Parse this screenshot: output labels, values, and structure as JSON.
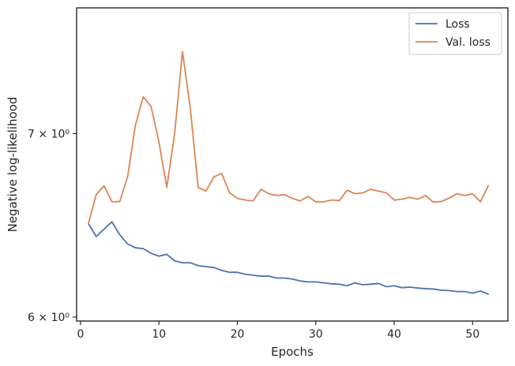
{
  "chart_data": {
    "type": "line",
    "xlabel": "Epochs",
    "ylabel": "Negative log-likelihood",
    "yscale": "log",
    "xlim": [
      -0.5,
      54.5
    ],
    "ylim": [
      5.98,
      7.78
    ],
    "xticks": [
      0,
      10,
      20,
      30,
      40,
      50
    ],
    "xtick_labels": [
      "0",
      "10",
      "20",
      "30",
      "40",
      "50"
    ],
    "yticks": [
      6,
      7
    ],
    "ytick_labels": [
      "6 × 10⁰",
      "7 × 10⁰"
    ],
    "grid": false,
    "legend_position": "top-right",
    "x": [
      1,
      2,
      3,
      4,
      5,
      6,
      7,
      8,
      9,
      10,
      11,
      12,
      13,
      14,
      15,
      16,
      17,
      18,
      19,
      20,
      21,
      22,
      23,
      24,
      25,
      26,
      27,
      28,
      29,
      30,
      31,
      32,
      33,
      34,
      35,
      36,
      37,
      38,
      39,
      40,
      41,
      42,
      43,
      44,
      45,
      46,
      47,
      48,
      49,
      50,
      51,
      52
    ],
    "series": [
      {
        "name": "Loss",
        "color": "#4c72b0",
        "values": [
          6.49,
          6.42,
          6.46,
          6.5,
          6.43,
          6.38,
          6.36,
          6.355,
          6.33,
          6.315,
          6.325,
          6.29,
          6.28,
          6.28,
          6.265,
          6.26,
          6.255,
          6.24,
          6.23,
          6.23,
          6.22,
          6.215,
          6.21,
          6.21,
          6.2,
          6.2,
          6.195,
          6.185,
          6.18,
          6.18,
          6.175,
          6.17,
          6.168,
          6.16,
          6.175,
          6.165,
          6.168,
          6.172,
          6.155,
          6.16,
          6.15,
          6.153,
          6.148,
          6.145,
          6.143,
          6.137,
          6.135,
          6.13,
          6.13,
          6.122,
          6.133,
          6.117
        ]
      },
      {
        "name": "Val. loss",
        "color": "#dd8452",
        "values": [
          6.49,
          6.65,
          6.7,
          6.61,
          6.612,
          6.75,
          7.05,
          7.22,
          7.16,
          6.95,
          6.69,
          7.0,
          7.5,
          7.15,
          6.69,
          6.67,
          6.75,
          6.77,
          6.66,
          6.63,
          6.62,
          6.615,
          6.68,
          6.655,
          6.645,
          6.65,
          6.63,
          6.615,
          6.64,
          6.61,
          6.61,
          6.62,
          6.617,
          6.675,
          6.655,
          6.66,
          6.68,
          6.67,
          6.66,
          6.62,
          6.625,
          6.635,
          6.625,
          6.645,
          6.608,
          6.612,
          6.63,
          6.655,
          6.645,
          6.655,
          6.61,
          6.7
        ]
      }
    ]
  }
}
